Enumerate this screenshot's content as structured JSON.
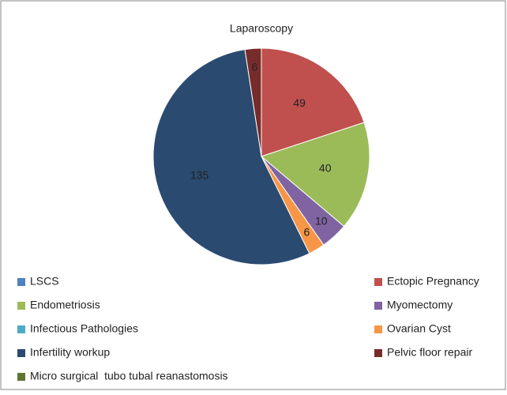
{
  "chart_data": {
    "type": "pie",
    "title": "Laparoscopy",
    "categories": [
      "LSCS",
      "Ectopic Pregnancy",
      "Endometriosis",
      "Myomectomy",
      "Infectious Pathologies",
      "Ovarian Cyst",
      "Infertility workup",
      "Pelvic floor repair",
      "Micro surgical  tubo tubal reanastomosis"
    ],
    "values": [
      0,
      49,
      40,
      10,
      0,
      6,
      135,
      6,
      0
    ],
    "colors": [
      "#4f81bd",
      "#c0504d",
      "#9bbb59",
      "#8064a2",
      "#4bacc6",
      "#f79646",
      "#2a4a70",
      "#772c2a",
      "#5f7530"
    ],
    "legend": "bottom"
  }
}
